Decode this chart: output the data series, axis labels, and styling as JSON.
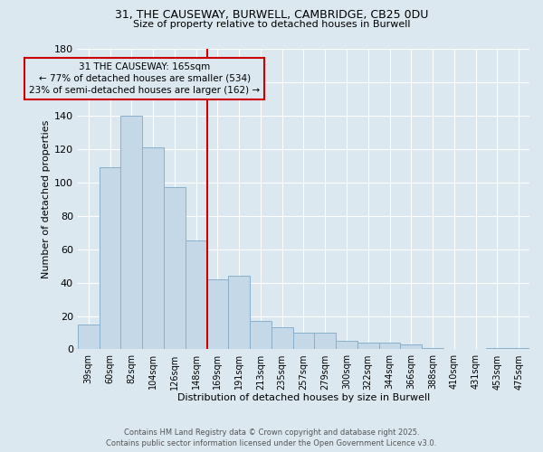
{
  "title": "31, THE CAUSEWAY, BURWELL, CAMBRIDGE, CB25 0DU",
  "subtitle": "Size of property relative to detached houses in Burwell",
  "xlabel": "Distribution of detached houses by size in Burwell",
  "ylabel": "Number of detached properties",
  "categories": [
    "39sqm",
    "60sqm",
    "82sqm",
    "104sqm",
    "126sqm",
    "148sqm",
    "169sqm",
    "191sqm",
    "213sqm",
    "235sqm",
    "257sqm",
    "279sqm",
    "300sqm",
    "322sqm",
    "344sqm",
    "366sqm",
    "388sqm",
    "410sqm",
    "431sqm",
    "453sqm",
    "475sqm"
  ],
  "values": [
    15,
    109,
    140,
    121,
    97,
    65,
    42,
    44,
    17,
    13,
    10,
    10,
    5,
    4,
    4,
    3,
    1,
    0,
    0,
    1,
    1
  ],
  "bar_color": "#c5d8e8",
  "bar_edge_color": "#8ab0cc",
  "marker_line_bar_index": 6,
  "marker_label_line1": "31 THE CAUSEWAY: 165sqm",
  "marker_label_line2": "← 77% of detached houses are smaller (534)",
  "marker_label_line3": "23% of semi-detached houses are larger (162) →",
  "annotation_box_color": "#cc0000",
  "ylim": [
    0,
    180
  ],
  "yticks": [
    0,
    20,
    40,
    60,
    80,
    100,
    120,
    140,
    160,
    180
  ],
  "background_color": "#dce8f0",
  "footer_line1": "Contains HM Land Registry data © Crown copyright and database right 2025.",
  "footer_line2": "Contains public sector information licensed under the Open Government Licence v3.0."
}
